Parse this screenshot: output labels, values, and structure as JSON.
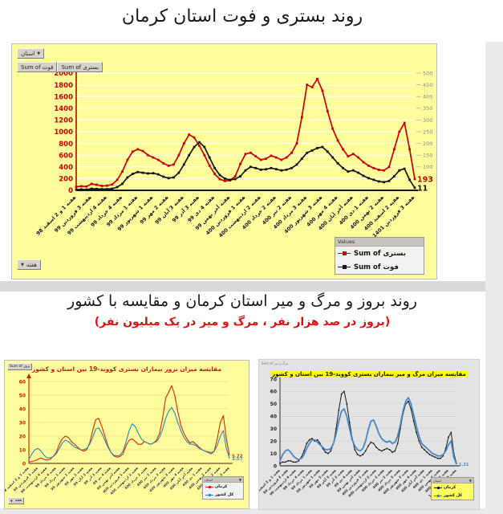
{
  "page": {
    "title1": "روند بستری و فوت استان کرمان",
    "title2": "روند بروز و مرگ و میر استان کرمان و مقایسه با کشور",
    "subtitle2": "(بروز در صد هزار نفر ، مرگ و میر در یک میلیون نفر)"
  },
  "pivot_main": {
    "filter": "استان",
    "field_foot": "Sum of فوت",
    "field_bostari": "Sum of بستری",
    "axis": "هفته",
    "legend_header": "Values"
  },
  "pivot_bl": {
    "field": "Sum of بروز",
    "axis": "هفته",
    "legend_header": "استان"
  },
  "pivot_br": {
    "field": "Sum of مرگ و میر",
    "legend_header": "استان"
  },
  "colors": {
    "bostari_red": "#cc0000",
    "foot_black": "#151515",
    "kerman_red": "#d42a10",
    "country_blue_bl": "#2d87b8",
    "kerman_black": "#1a1a1a",
    "country_blue_br": "#4a86c8",
    "panel_yellow": "#fdfd9c",
    "title_red": "#e01010"
  },
  "chart_data": [
    {
      "id": "main",
      "type": "line",
      "title": "",
      "categories": [
        "هفته 1 و 2 اسفند 98",
        "هفته 3 فروردین 99",
        "هفته 4 اردیبهشت 99",
        "هفته 4 خرداد 99",
        "هفته 1 مرداد 99",
        "هفته 1 شهریور 99",
        "هفته 2 مهر 99",
        "هفته 3 آبان 99",
        "هفته 3 آذر 99",
        "هفته 4 دی 99",
        "هفته آخر بهمن 99",
        "هفته 1 فروردین 400",
        "هفته 2 اردیبهشت 400",
        "هفته 2 خرداد 400",
        "هفته 2 تیر 400",
        "هفته 3 مرداد 400",
        "هفته 3 شهریور 400",
        "هفته 4 مهر 400",
        "هفته آخر آبان 400",
        "هفته 1 دی 400",
        "هفته 2 بهمن 400",
        "هفته 2 اسفند 400",
        "هفته 3 فروردین 1401"
      ],
      "axes": {
        "left": {
          "min": 0,
          "max": 2000,
          "step": 200,
          "label_color": "#cc0000"
        },
        "right": {
          "min": 0,
          "max": 500,
          "step": 50,
          "label_min": 100,
          "label_color": "#8a8a8a"
        }
      },
      "series": [
        {
          "name": "Sum of بستری",
          "color": "#cc0000",
          "axis": "left",
          "values": [
            60,
            70,
            65,
            110,
            95,
            75,
            80,
            100,
            180,
            320,
            520,
            660,
            700,
            670,
            600,
            560,
            520,
            460,
            420,
            440,
            600,
            800,
            950,
            900,
            760,
            600,
            420,
            280,
            190,
            160,
            170,
            240,
            450,
            620,
            640,
            580,
            520,
            540,
            590,
            560,
            520,
            560,
            640,
            800,
            1250,
            1800,
            1760,
            1900,
            1700,
            1350,
            1050,
            850,
            700,
            580,
            620,
            560,
            480,
            420,
            380,
            350,
            340,
            400,
            700,
            1000,
            1150,
            700,
            193
          ]
        },
        {
          "name": "Sum of فوت",
          "color": "#151515",
          "axis": "right",
          "values": [
            3,
            4,
            3,
            7,
            6,
            5,
            5,
            7,
            14,
            28,
            55,
            70,
            78,
            75,
            72,
            73,
            68,
            58,
            52,
            55,
            75,
            110,
            150,
            185,
            205,
            185,
            140,
            95,
            65,
            50,
            45,
            48,
            60,
            85,
            100,
            95,
            88,
            90,
            95,
            90,
            85,
            88,
            95,
            110,
            135,
            160,
            170,
            180,
            185,
            165,
            140,
            115,
            95,
            80,
            85,
            75,
            62,
            52,
            45,
            38,
            35,
            40,
            60,
            85,
            92,
            45,
            11
          ]
        }
      ],
      "end_labels": [
        {
          "text": "193",
          "color": "#cc0000",
          "series": 0
        },
        {
          "text": "11",
          "color": "#151515",
          "series": 1
        }
      ],
      "legend": {
        "header": "Values",
        "items": [
          {
            "label": "Sum of بستری",
            "color": "#cc0000"
          },
          {
            "label": "Sum of فوت",
            "color": "#151515"
          }
        ]
      }
    },
    {
      "id": "incidence",
      "type": "line",
      "title": "مقایسه میزان بروز بیماران بستری کووید-19 بین استان و کشور",
      "categories": [
        "هفته 1 و 2 اسفند 98",
        "هفته 3 فروردین 99",
        "هفته 4 اردیبهشت 99",
        "هفته 4 خرداد 99",
        "هفته 1 مرداد 99",
        "هفته 1 شهریور 99",
        "هفته 2 مهر 99",
        "هفته 3 آبان 99",
        "هفته 3 آذر 99",
        "هفته 4 دی 99",
        "هفته آخر بهمن 99",
        "هفته 1 فروردین 400",
        "هفته 2 اردیبهشت 400",
        "هفته 2 خرداد 400",
        "هفته 2 تیر 400",
        "هفته 3 مرداد 400",
        "هفته 3 شهریور 400",
        "هفته 4 مهر 400",
        "هفته آخر آبان 400",
        "هفته 1 دی 400",
        "هفته 2 بهمن 400",
        "هفته 2 اسفند 400",
        "هفته 3 فروردین 1401"
      ],
      "axes": {
        "left": {
          "min": 0,
          "max": 60,
          "step": 10,
          "label_color": "#cc2200"
        }
      },
      "series": [
        {
          "name": "کرمان",
          "color": "#d42a10",
          "axis": "left",
          "values": [
            1,
            1.5,
            2,
            3,
            4,
            3,
            2.5,
            3,
            5,
            8,
            14,
            18,
            20,
            19,
            16,
            14,
            12,
            10,
            9,
            10,
            15,
            24,
            32,
            33,
            27,
            20,
            13,
            8,
            5.5,
            4.5,
            5,
            7,
            13,
            17,
            18,
            16,
            14,
            14,
            16,
            15,
            14,
            15,
            17,
            22,
            33,
            48,
            52,
            57,
            50,
            38,
            28,
            22,
            18,
            15,
            16,
            14,
            12,
            10,
            9,
            8,
            7,
            9,
            18,
            30,
            35,
            18,
            5.72
          ]
        },
        {
          "name": "کل کشور",
          "color": "#2d87b8",
          "axis": "left",
          "values": [
            3,
            7,
            10,
            11,
            9,
            6,
            4,
            4,
            5,
            7,
            11,
            15,
            17,
            16,
            14,
            12,
            11,
            10,
            10,
            11,
            14,
            19,
            25,
            26,
            22,
            17,
            12,
            8,
            6,
            5.5,
            6,
            9,
            16,
            24,
            29,
            27,
            22,
            18,
            16,
            15,
            14,
            15,
            16,
            19,
            25,
            33,
            38,
            41,
            37,
            30,
            24,
            19,
            16,
            14,
            14,
            13,
            11,
            10,
            9,
            8.5,
            8,
            9,
            13,
            20,
            24,
            11,
            3.57
          ]
        }
      ],
      "end_labels": [
        {
          "text": "5.72",
          "color": "#d42a10",
          "series": 0
        },
        {
          "text": "3.57",
          "color": "#2d87b8",
          "series": 1
        }
      ],
      "legend": {
        "header": "استان",
        "items": [
          {
            "label": "کرمان",
            "color": "#d42a10"
          },
          {
            "label": "کل کشور",
            "color": "#2d87b8"
          }
        ]
      }
    },
    {
      "id": "mortality",
      "type": "line",
      "title": "مقایسه میزان مرگ و میر بیماران بستری کووید-19 بین استان و کشور",
      "categories": [
        "هفته 1 و 2 اسفند 98",
        "هفته 3 فروردین 99",
        "هفته 4 اردیبهشت 99",
        "هفته 4 خرداد 99",
        "هفته 1 مرداد 99",
        "هفته 1 شهریور 99",
        "هفته 2 مهر 99",
        "هفته 3 آبان 99",
        "هفته 3 آذر 99",
        "هفته 4 دی 99",
        "هفته آخر بهمن 99",
        "هفته 1 فروردین 400",
        "هفته 2 اردیبهشت 400",
        "هفته 2 خرداد 400",
        "هفته 2 تیر 400",
        "هفته 3 مرداد 400",
        "هفته 3 شهریور 400",
        "هفته 4 مهر 400",
        "هفته آخر آبان 400",
        "هفته 1 دی 400",
        "هفته 2 بهمن 400",
        "هفته 2 اسفند 400",
        "هفته 3 فروردین 1401"
      ],
      "axes": {
        "left": {
          "min": 0,
          "max": 70,
          "step": 10,
          "label_color": "#222222"
        }
      },
      "series": [
        {
          "name": "کرمان",
          "color": "#1a1a1a",
          "axis": "left",
          "values": [
            2,
            3,
            3,
            4,
            4,
            3,
            3,
            4,
            7,
            12,
            18,
            21,
            22,
            20,
            21,
            18,
            14,
            11,
            10,
            12,
            18,
            30,
            45,
            58,
            60,
            50,
            35,
            22,
            13,
            9,
            8,
            9,
            12,
            16,
            19,
            18,
            15,
            13,
            12,
            13,
            14,
            13,
            11,
            12,
            18,
            30,
            42,
            50,
            52,
            46,
            36,
            27,
            20,
            15,
            13,
            11,
            9,
            8,
            7,
            6,
            6,
            8,
            14,
            23,
            27,
            10,
            2
          ]
        },
        {
          "name": "کل کشور",
          "color": "#4a86c8",
          "axis": "left",
          "values": [
            4,
            9,
            12,
            13,
            11,
            8,
            6,
            5,
            6,
            9,
            14,
            18,
            21,
            21,
            19,
            17,
            15,
            13,
            13,
            14,
            18,
            26,
            36,
            44,
            46,
            40,
            30,
            21,
            16,
            13,
            12,
            14,
            20,
            29,
            36,
            37,
            32,
            26,
            22,
            20,
            19,
            20,
            18,
            19,
            24,
            33,
            44,
            52,
            55,
            50,
            41,
            32,
            24,
            18,
            16,
            14,
            12,
            10,
            9,
            8,
            8,
            9,
            12,
            17,
            20,
            7,
            1.31
          ]
        }
      ],
      "end_labels": [
        {
          "text": "1.31",
          "color": "#4a86c8",
          "series": 1
        }
      ],
      "legend": {
        "header": "استان",
        "items": [
          {
            "label": "کرمان",
            "color": "#1a1a1a"
          },
          {
            "label": "کل کشور",
            "color": "#4a86c8"
          }
        ]
      }
    }
  ]
}
